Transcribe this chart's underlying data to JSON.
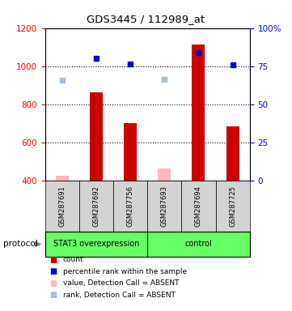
{
  "title": "GDS3445 / 112989_at",
  "samples": [
    "GSM287691",
    "GSM287692",
    "GSM287756",
    "GSM287693",
    "GSM287694",
    "GSM287725"
  ],
  "groups": [
    "STAT3 overexpression",
    "STAT3 overexpression",
    "STAT3 overexpression",
    "control",
    "control",
    "control"
  ],
  "bar_color_present": "#CC0000",
  "bar_color_absent": "#FFB6C1",
  "dot_color_present": "#0000CC",
  "dot_color_absent": "#AABBDD",
  "ylim_left": [
    400,
    1200
  ],
  "ylim_right": [
    0,
    100
  ],
  "yticks_left": [
    400,
    600,
    800,
    1000,
    1200
  ],
  "yticks_right": [
    0,
    25,
    50,
    75,
    100
  ],
  "count_values": [
    null,
    862,
    700,
    null,
    1115,
    684
  ],
  "count_absent_values": [
    425,
    null,
    null,
    462,
    null,
    null
  ],
  "rank_values": [
    null,
    1040,
    1010,
    null,
    1070,
    1005
  ],
  "rank_absent_values": [
    928,
    null,
    null,
    932,
    null,
    null
  ],
  "background_color": "#ffffff",
  "table_header_color": "#d3d3d3",
  "green_color": "#66FF66",
  "legend_items": [
    [
      "#CC0000",
      "count"
    ],
    [
      "#0000CC",
      "percentile rank within the sample"
    ],
    [
      "#FFB6C1",
      "value, Detection Call = ABSENT"
    ],
    [
      "#AABBDD",
      "rank, Detection Call = ABSENT"
    ]
  ]
}
